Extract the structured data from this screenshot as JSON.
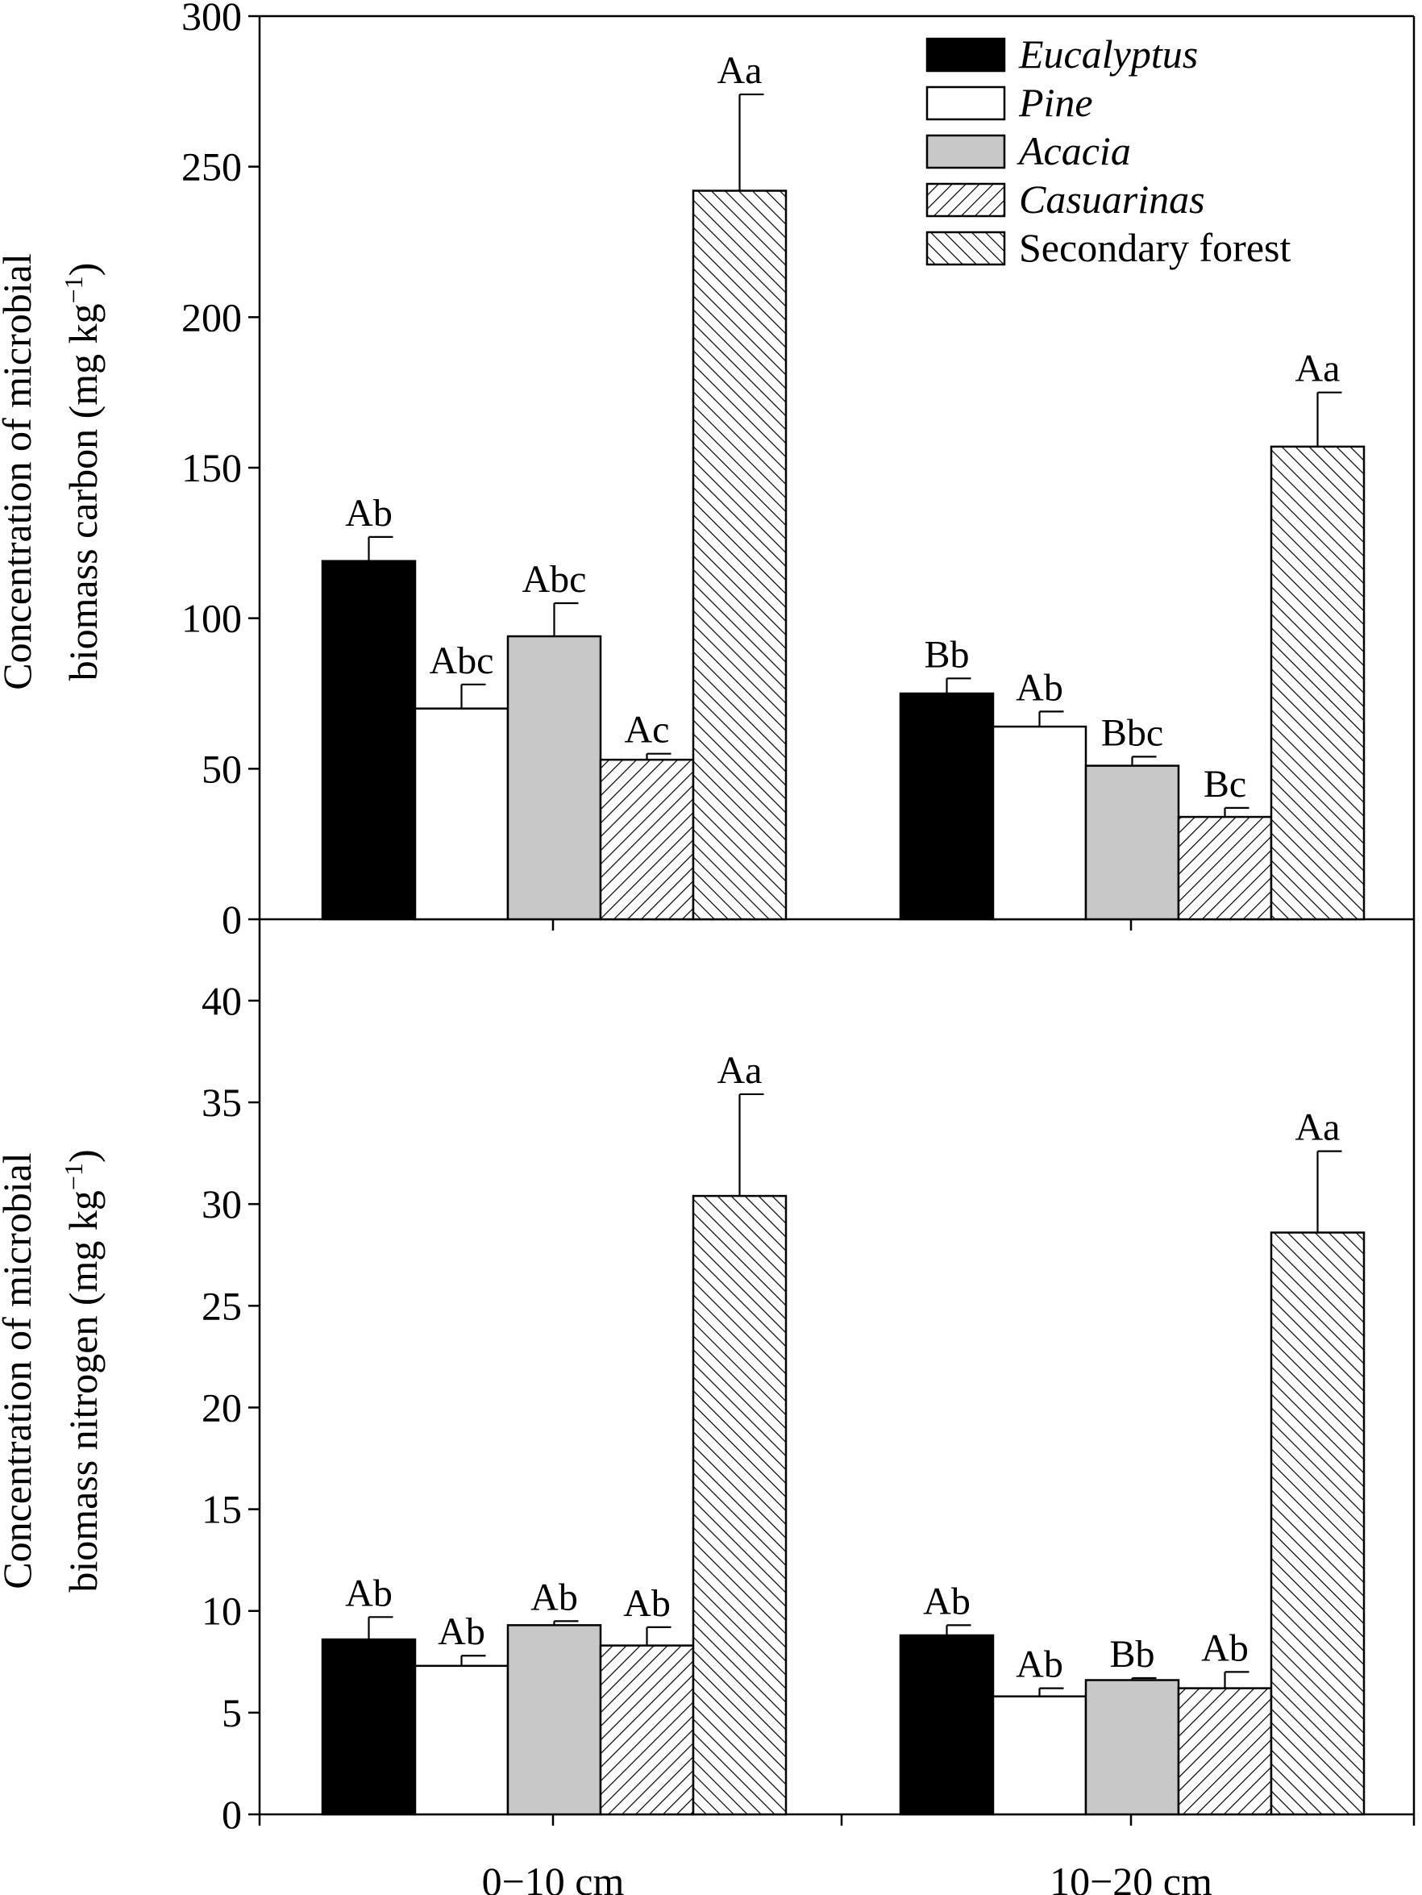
{
  "chart_data": [
    {
      "type": "bar",
      "panel": "top",
      "categories": [
        "0−10 cm",
        "10−20 cm"
      ],
      "ylabel_line1": "Concentration of microbial",
      "ylabel_line2": "biomass carbon (mg kg",
      "ylabel_sup": "−1",
      "ylabel_close": ")",
      "ylim": [
        0,
        300
      ],
      "yticks": [
        "0",
        "50",
        "100",
        "150",
        "200",
        "250",
        "300"
      ],
      "series": [
        {
          "name": "Eucalyptus",
          "values": [
            119,
            75
          ],
          "errors": [
            8,
            5
          ],
          "labels": [
            "Ab",
            "Bb"
          ]
        },
        {
          "name": "Pine",
          "values": [
            70,
            64
          ],
          "errors": [
            8,
            5
          ],
          "labels": [
            "Abc",
            "Ab"
          ]
        },
        {
          "name": "Acacia",
          "values": [
            94,
            51
          ],
          "errors": [
            11,
            3
          ],
          "labels": [
            "Abc",
            "Bbc"
          ]
        },
        {
          "name": "Casuarinas",
          "values": [
            53,
            34
          ],
          "errors": [
            2,
            3
          ],
          "labels": [
            "Ac",
            "Bc"
          ]
        },
        {
          "name": "Secondary forest",
          "values": [
            242,
            157
          ],
          "errors": [
            32,
            18
          ],
          "labels": [
            "Aa",
            "Aa"
          ]
        }
      ],
      "legend_position": "top-right"
    },
    {
      "type": "bar",
      "panel": "bottom",
      "categories": [
        "0−10 cm",
        "10−20 cm"
      ],
      "ylabel_line1": "Concentration of microbial",
      "ylabel_line2": "biomass nitrogen (mg kg",
      "ylabel_sup": "−1",
      "ylabel_close": ")",
      "ylim": [
        0,
        44
      ],
      "yticks": [
        "0",
        "5",
        "10",
        "15",
        "20",
        "25",
        "30",
        "35",
        "40"
      ],
      "series": [
        {
          "name": "Eucalyptus",
          "values": [
            8.6,
            8.8
          ],
          "errors": [
            1.1,
            0.5
          ],
          "labels": [
            "Ab",
            "Ab"
          ]
        },
        {
          "name": "Pine",
          "values": [
            7.3,
            5.8
          ],
          "errors": [
            0.5,
            0.4
          ],
          "labels": [
            "Ab",
            "Ab"
          ]
        },
        {
          "name": "Acacia",
          "values": [
            9.3,
            6.6
          ],
          "errors": [
            0.2,
            0.1
          ],
          "labels": [
            "Ab",
            "Bb"
          ]
        },
        {
          "name": "Casuarinas",
          "values": [
            8.3,
            6.2
          ],
          "errors": [
            0.9,
            0.8
          ],
          "labels": [
            "Ab",
            "Ab"
          ]
        },
        {
          "name": "Secondary forest",
          "values": [
            30.4,
            28.6
          ],
          "errors": [
            5.0,
            4.0
          ],
          "labels": [
            "Aa",
            "Aa"
          ]
        }
      ]
    }
  ],
  "legend": [
    {
      "name": "Eucalyptus",
      "italic": true,
      "fill": "#000000",
      "pattern": "solid"
    },
    {
      "name": "Pine",
      "italic": true,
      "fill": "#ffffff",
      "pattern": "solid"
    },
    {
      "name": "Acacia",
      "italic": true,
      "fill": "#c8c8c8",
      "pattern": "solid"
    },
    {
      "name": "Casuarinas",
      "italic": true,
      "fill": "#ffffff",
      "pattern": "hatch-right"
    },
    {
      "name": "Secondary forest",
      "italic": false,
      "fill": "#ffffff",
      "pattern": "hatch-left"
    }
  ]
}
